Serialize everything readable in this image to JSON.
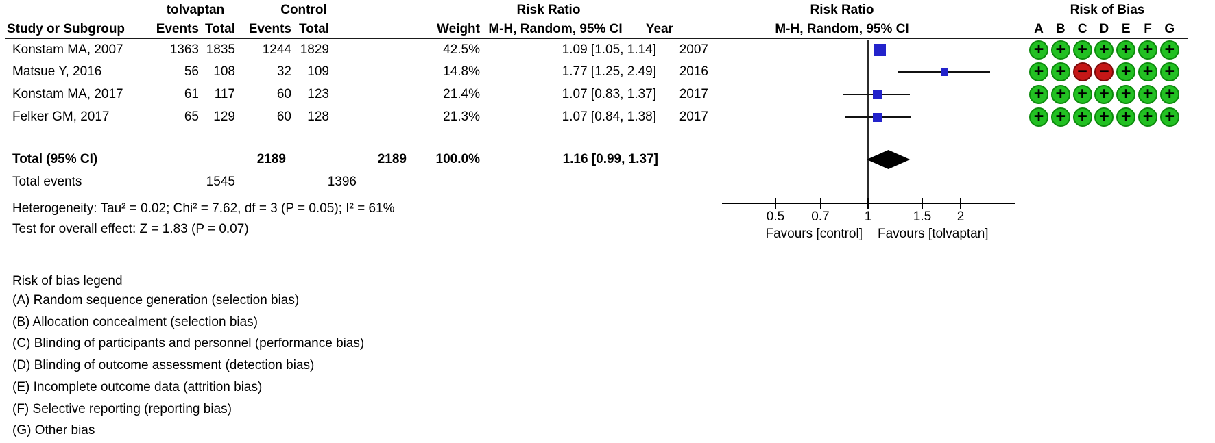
{
  "title_row": {
    "tolvaptan": "tolvaptan",
    "control": "Control",
    "risk_ratio_text": "Risk Ratio",
    "risk_ratio_plot": "Risk Ratio",
    "risk_of_bias": "Risk of Bias"
  },
  "columns": {
    "study": "Study or Subgroup",
    "events_t": "Events",
    "total_t": "Total",
    "events_c": "Events",
    "total_c": "Total",
    "weight": "Weight",
    "rr_ci": "M-H, Random, 95% CI",
    "year": "Year",
    "rr_ci_plot": "M-H, Random, 95% CI",
    "rob_letters": [
      "A",
      "B",
      "C",
      "D",
      "E",
      "F",
      "G"
    ]
  },
  "studies": [
    {
      "name": "Konstam MA, 2007",
      "events_t": "1363",
      "total_t": "1835",
      "events_c": "1244",
      "total_c": "1829",
      "weight": "42.5%",
      "rr_ci": "1.09 [1.05, 1.14]",
      "year": "2007",
      "rob": [
        "+",
        "+",
        "+",
        "+",
        "+",
        "+",
        "+"
      ]
    },
    {
      "name": "Matsue Y, 2016",
      "events_t": "56",
      "total_t": "108",
      "events_c": "32",
      "total_c": "109",
      "weight": "14.8%",
      "rr_ci": "1.77 [1.25, 2.49]",
      "year": "2016",
      "rob": [
        "+",
        "+",
        "-",
        "-",
        "+",
        "+",
        "+"
      ]
    },
    {
      "name": "Konstam MA, 2017",
      "events_t": "61",
      "total_t": "117",
      "events_c": "60",
      "total_c": "123",
      "weight": "21.4%",
      "rr_ci": "1.07 [0.83, 1.37]",
      "year": "2017",
      "rob": [
        "+",
        "+",
        "+",
        "+",
        "+",
        "+",
        "+"
      ]
    },
    {
      "name": "Felker GM, 2017",
      "events_t": "65",
      "total_t": "129",
      "events_c": "60",
      "total_c": "128",
      "weight": "21.3%",
      "rr_ci": "1.07 [0.84, 1.38]",
      "year": "2017",
      "rob": [
        "+",
        "+",
        "+",
        "+",
        "+",
        "+",
        "+"
      ]
    }
  ],
  "total": {
    "label": "Total (95% CI)",
    "total_t": "2189",
    "total_c": "2189",
    "weight": "100.0%",
    "rr_ci": "1.16 [0.99, 1.37]"
  },
  "total_events": {
    "label": "Total events",
    "events_t": "1545",
    "events_c": "1396"
  },
  "heterogeneity": "Heterogeneity: Tau² = 0.02; Chi² = 7.62, df = 3 (P = 0.05); I² = 61%",
  "overall_effect": "Test for overall effect: Z = 1.83 (P = 0.07)",
  "axis": {
    "ticks": [
      "0.5",
      "0.7",
      "1",
      "1.5",
      "2"
    ],
    "tick_values": [
      0.5,
      0.7,
      1,
      1.5,
      2
    ],
    "favours_left": "Favours [control]",
    "favours_right": "Favours [tolvaptan]"
  },
  "rob_legend": {
    "heading": "Risk of bias legend",
    "items": [
      "(A) Random sequence generation (selection bias)",
      "(B) Allocation concealment (selection bias)",
      "(C) Blinding of participants and personnel (performance bias)",
      "(D) Blinding of outcome assessment (detection bias)",
      "(E) Incomplete outcome data (attrition bias)",
      "(F) Selective reporting (reporting bias)",
      "(G) Other bias"
    ]
  },
  "colors": {
    "square_blue": "#2323cb",
    "rob_green": "#22c022",
    "rob_green_border": "#0d8a0d",
    "rob_red": "#c51717",
    "rob_red_border": "#7d0a0a",
    "diamond_black": "#000000"
  },
  "chart_data": {
    "type": "scatter",
    "subtype": "forest-plot",
    "x_scale": "log",
    "x_ticks": [
      0.5,
      0.7,
      1,
      1.5,
      2
    ],
    "effect_measure": "Risk Ratio (M-H, Random, 95% CI)",
    "favours_left": "Favours [control]",
    "favours_right": "Favours [tolvaptan]",
    "studies": [
      {
        "label": "Konstam MA, 2007",
        "rr": 1.09,
        "ci": [
          1.05,
          1.14
        ],
        "weight_pct": 42.5
      },
      {
        "label": "Matsue Y, 2016",
        "rr": 1.77,
        "ci": [
          1.25,
          2.49
        ],
        "weight_pct": 14.8
      },
      {
        "label": "Konstam MA, 2017",
        "rr": 1.07,
        "ci": [
          0.83,
          1.37
        ],
        "weight_pct": 21.4
      },
      {
        "label": "Felker GM, 2017",
        "rr": 1.07,
        "ci": [
          0.84,
          1.38
        ],
        "weight_pct": 21.3
      }
    ],
    "summary": {
      "label": "Total (95% CI)",
      "rr": 1.16,
      "ci": [
        0.99,
        1.37
      ]
    },
    "heterogeneity": {
      "tau2": 0.02,
      "chi2": 7.62,
      "df": 3,
      "p_het": 0.05,
      "i2_pct": 61
    },
    "overall_effect": {
      "z": 1.83,
      "p": 0.07
    }
  }
}
